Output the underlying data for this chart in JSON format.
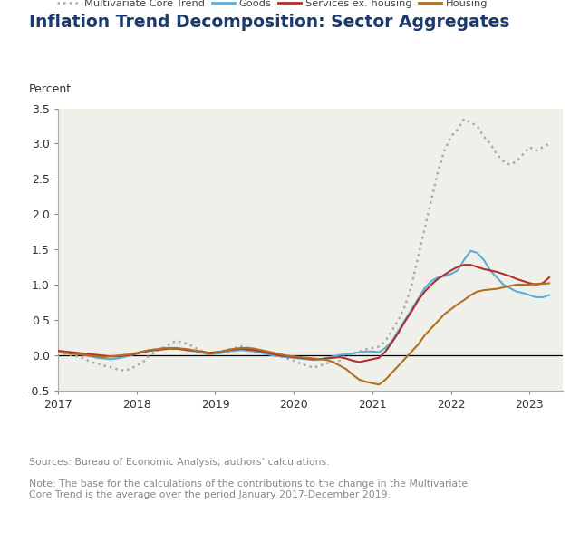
{
  "title": "Inflation Trend Decomposition: Sector Aggregates",
  "title_color": "#1a3a6b",
  "ylabel": "Percent",
  "background_color": "#ffffff",
  "plot_bg_color": "#f0f0eb",
  "source_text": "Sources: Bureau of Economic Analysis; authors’ calculations.",
  "note_text": "Note: The base for the calculations of the contributions to the change in the Multivariate\nCore Trend is the average over the period January 2017-December 2019.",
  "legend_labels": [
    "Multivariate Core Trend",
    "Goods",
    "Services ex. housing",
    "Housing"
  ],
  "legend_colors": [
    "#aaaaaa",
    "#5badd6",
    "#b03030",
    "#b07020"
  ],
  "ylim": [
    -0.5,
    3.5
  ],
  "yticks": [
    -0.5,
    0.0,
    0.5,
    1.0,
    1.5,
    2.0,
    2.5,
    3.0,
    3.5
  ],
  "xtick_years": [
    2017,
    2018,
    2019,
    2020,
    2021,
    2022,
    2023
  ],
  "multivariate": [
    0.05,
    0.02,
    0.0,
    -0.02,
    -0.05,
    -0.1,
    -0.12,
    -0.15,
    -0.17,
    -0.2,
    -0.22,
    -0.2,
    -0.15,
    -0.1,
    0.0,
    0.05,
    0.1,
    0.15,
    0.2,
    0.18,
    0.15,
    0.1,
    0.05,
    0.0,
    0.02,
    0.05,
    0.08,
    0.1,
    0.12,
    0.1,
    0.08,
    0.05,
    0.02,
    0.0,
    -0.02,
    -0.05,
    -0.08,
    -0.12,
    -0.15,
    -0.18,
    -0.15,
    -0.12,
    -0.1,
    -0.08,
    0.0,
    0.02,
    0.05,
    0.08,
    0.1,
    0.12,
    0.2,
    0.35,
    0.5,
    0.7,
    1.0,
    1.4,
    1.8,
    2.2,
    2.6,
    2.9,
    3.1,
    3.2,
    3.35,
    3.3,
    3.25,
    3.1,
    3.0,
    2.85,
    2.75,
    2.7,
    2.75,
    2.85,
    2.95,
    2.9,
    2.95,
    3.0
  ],
  "goods": [
    0.05,
    0.04,
    0.03,
    0.02,
    0.0,
    -0.02,
    -0.04,
    -0.05,
    -0.06,
    -0.05,
    -0.03,
    -0.01,
    0.02,
    0.05,
    0.07,
    0.08,
    0.1,
    0.1,
    0.09,
    0.08,
    0.06,
    0.05,
    0.03,
    0.01,
    0.02,
    0.03,
    0.05,
    0.06,
    0.07,
    0.06,
    0.05,
    0.03,
    0.01,
    -0.01,
    -0.02,
    -0.03,
    -0.04,
    -0.05,
    -0.06,
    -0.07,
    -0.06,
    -0.04,
    -0.02,
    0.0,
    0.01,
    0.02,
    0.04,
    0.05,
    0.05,
    0.04,
    0.1,
    0.2,
    0.35,
    0.5,
    0.65,
    0.8,
    0.95,
    1.05,
    1.1,
    1.12,
    1.15,
    1.2,
    1.35,
    1.48,
    1.45,
    1.35,
    1.2,
    1.1,
    1.0,
    0.95,
    0.9,
    0.88,
    0.85,
    0.82,
    0.82,
    0.85
  ],
  "services": [
    0.06,
    0.05,
    0.04,
    0.03,
    0.02,
    0.01,
    0.0,
    -0.01,
    -0.02,
    -0.02,
    -0.01,
    0.0,
    0.02,
    0.04,
    0.06,
    0.07,
    0.08,
    0.09,
    0.09,
    0.08,
    0.07,
    0.06,
    0.05,
    0.03,
    0.04,
    0.05,
    0.07,
    0.08,
    0.09,
    0.08,
    0.07,
    0.05,
    0.03,
    0.01,
    -0.01,
    -0.02,
    -0.03,
    -0.04,
    -0.05,
    -0.06,
    -0.06,
    -0.05,
    -0.04,
    -0.03,
    -0.05,
    -0.08,
    -0.1,
    -0.08,
    -0.06,
    -0.04,
    0.05,
    0.18,
    0.32,
    0.48,
    0.62,
    0.78,
    0.9,
    1.0,
    1.08,
    1.14,
    1.2,
    1.25,
    1.28,
    1.28,
    1.25,
    1.22,
    1.2,
    1.18,
    1.15,
    1.12,
    1.08,
    1.05,
    1.02,
    1.0,
    1.02,
    1.1
  ],
  "housing": [
    0.04,
    0.03,
    0.02,
    0.01,
    0.0,
    -0.01,
    -0.02,
    -0.03,
    -0.02,
    -0.01,
    0.0,
    0.01,
    0.03,
    0.05,
    0.07,
    0.08,
    0.09,
    0.1,
    0.1,
    0.09,
    0.08,
    0.06,
    0.04,
    0.02,
    0.03,
    0.05,
    0.07,
    0.09,
    0.1,
    0.1,
    0.09,
    0.07,
    0.05,
    0.03,
    0.01,
    -0.01,
    -0.02,
    -0.03,
    -0.04,
    -0.05,
    -0.06,
    -0.07,
    -0.1,
    -0.15,
    -0.2,
    -0.28,
    -0.35,
    -0.38,
    -0.4,
    -0.42,
    -0.35,
    -0.25,
    -0.15,
    -0.05,
    0.05,
    0.15,
    0.28,
    0.38,
    0.48,
    0.58,
    0.65,
    0.72,
    0.78,
    0.85,
    0.9,
    0.92,
    0.93,
    0.94,
    0.96,
    0.98,
    1.0,
    1.0,
    1.0,
    1.01,
    1.01,
    1.02
  ]
}
